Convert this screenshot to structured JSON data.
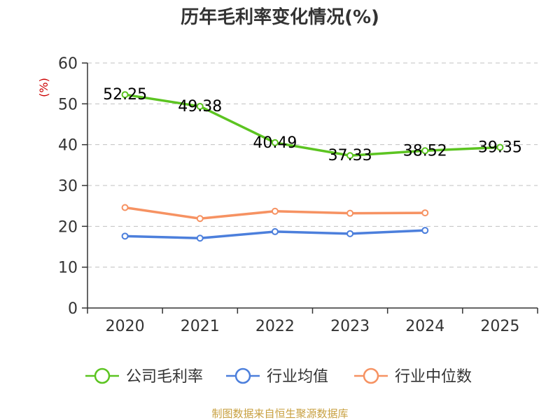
{
  "chart_data": {
    "type": "line",
    "title": "历年毛利率变化情况(%)",
    "ylabel": "(%)",
    "xlabel": "",
    "ylim": [
      0,
      60
    ],
    "yticks": [
      0,
      10,
      20,
      30,
      40,
      50,
      60
    ],
    "categories": [
      "2020",
      "2021",
      "2022",
      "2023",
      "2024",
      "2025"
    ],
    "grid": true,
    "legend_position": "bottom",
    "series": [
      {
        "name": "公司毛利率",
        "color": "#5cc421",
        "values": [
          52.25,
          49.38,
          40.49,
          37.33,
          38.52,
          39.35
        ],
        "labels": [
          "52.25",
          "49.38",
          "40.49",
          "37.33",
          "38.52",
          "39.35"
        ]
      },
      {
        "name": "行业均值",
        "color": "#4c7fdc",
        "values": [
          17.6,
          17.1,
          18.7,
          18.2,
          19.0,
          null
        ]
      },
      {
        "name": "行业中位数",
        "color": "#f69262",
        "values": [
          24.6,
          21.9,
          23.7,
          23.2,
          23.3,
          null
        ]
      }
    ],
    "source": "制图数据来自恒生聚源数据库"
  }
}
